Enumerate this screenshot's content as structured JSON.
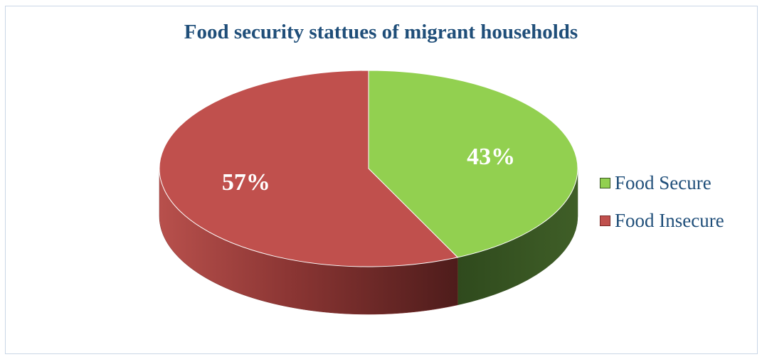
{
  "chart_data": {
    "type": "pie",
    "style": "3d",
    "title": "Food security stattues of migrant households",
    "slices": [
      {
        "label": "Food Secure",
        "value": 43,
        "display": "43%",
        "color": "#92d050",
        "side_color": "#3a5723"
      },
      {
        "label": "Food Insecure",
        "value": 57,
        "display": "57%",
        "color": "#c0504d",
        "side_color": "#7a2a28"
      }
    ],
    "legend_position": "right"
  }
}
